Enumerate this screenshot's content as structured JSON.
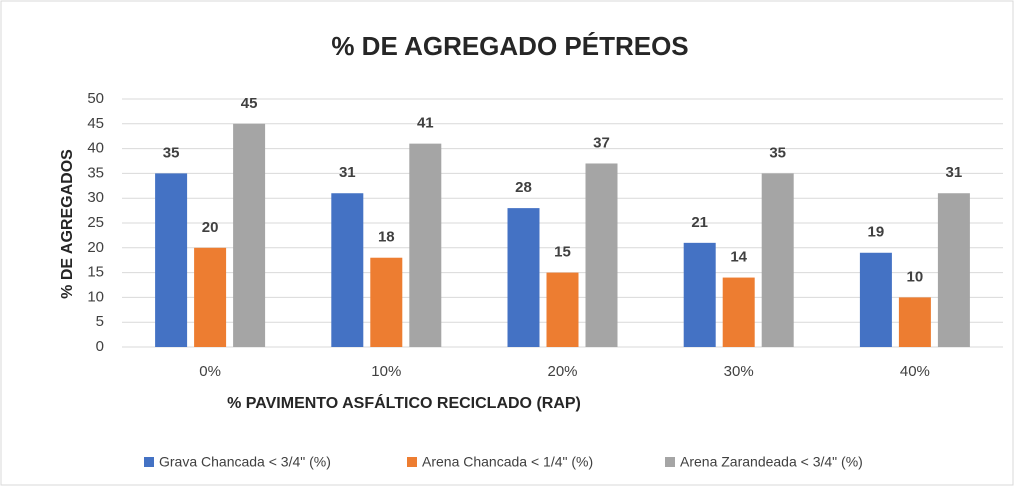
{
  "chart_data": {
    "type": "bar",
    "title": "% DE AGREGADO PÉTREOS",
    "x_label": "% PAVIMENTO ASFÁLTICO RECICLADO (RAP)",
    "y_label": "% DE AGREGADOS",
    "categories": [
      "0%",
      "10%",
      "20%",
      "30%",
      "40%"
    ],
    "series": [
      {
        "name": "Grava Chancada < 3/4\" (%)",
        "color": "#4472c4",
        "values": [
          35,
          31,
          28,
          21,
          19
        ]
      },
      {
        "name": "Arena Chancada < 1/4\" (%)",
        "color": "#ed7d31",
        "values": [
          20,
          18,
          15,
          14,
          10
        ]
      },
      {
        "name": "Arena Zarandeada < 3/4\" (%)",
        "color": "#a5a5a5",
        "values": [
          45,
          41,
          37,
          35,
          31
        ]
      }
    ],
    "ylim": [
      0,
      50
    ],
    "yticks": [
      0,
      5,
      10,
      15,
      20,
      25,
      30,
      35,
      40,
      45,
      50
    ],
    "grid": true,
    "legend": "bottom",
    "data_labels": true
  }
}
